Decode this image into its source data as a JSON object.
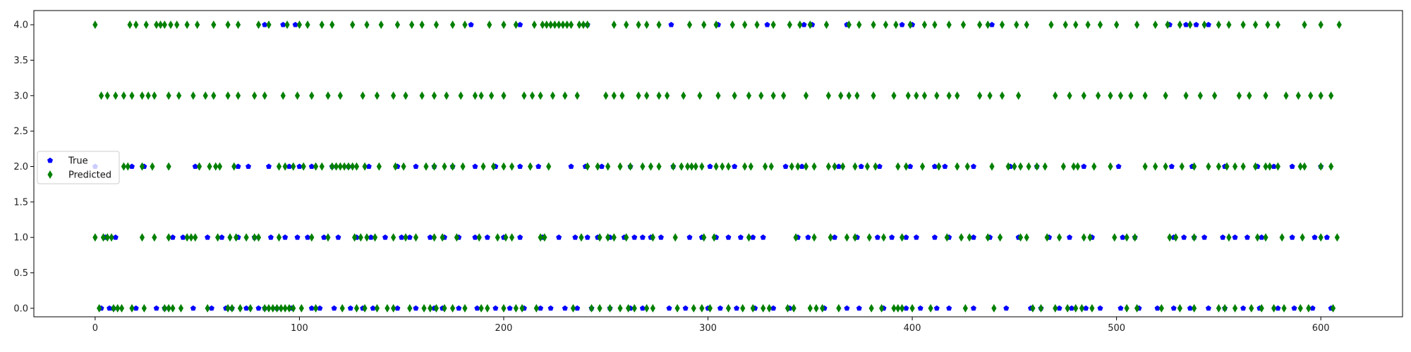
{
  "chart_data": {
    "type": "scatter",
    "title": "",
    "xlabel": "",
    "ylabel": "",
    "xlim": [
      -30,
      640
    ],
    "ylim": [
      -0.12,
      4.2
    ],
    "x_ticks": [
      0,
      100,
      200,
      300,
      400,
      500,
      600
    ],
    "y_ticks": [
      0.0,
      0.5,
      1.0,
      1.5,
      2.0,
      2.5,
      3.0,
      3.5,
      4.0
    ],
    "x_tick_labels": [
      "0",
      "100",
      "200",
      "300",
      "400",
      "500",
      "600"
    ],
    "y_tick_labels": [
      "0.0",
      "0.5",
      "1.0",
      "1.5",
      "2.0",
      "2.5",
      "3.0",
      "3.5",
      "4.0"
    ],
    "grid": false,
    "legend": {
      "position": "center-left",
      "entries": [
        "True",
        "Predicted"
      ]
    },
    "series": [
      {
        "name": "True",
        "marker": "pentagon",
        "color": "#0000ff",
        "points": {
          "0": [
            3,
            7,
            9,
            20,
            30,
            34,
            48,
            57,
            64,
            67,
            74,
            80,
            83,
            89,
            96,
            106,
            110,
            117,
            125,
            131,
            136,
            148,
            157,
            166,
            170,
            178,
            187,
            196,
            203,
            210,
            218,
            223,
            230,
            236,
            243,
            252,
            262,
            268,
            281,
            289,
            300,
            306,
            314,
            323,
            332,
            340,
            357,
            368,
            374,
            386,
            397,
            404,
            412,
            418,
            430,
            446,
            458,
            463,
            472,
            478,
            485,
            492,
            502,
            511,
            520,
            528,
            536,
            545,
            553,
            562,
            570,
            579,
            587,
            596,
            605
          ],
          "1": [
            5,
            10,
            38,
            43,
            55,
            62,
            70,
            78,
            86,
            93,
            99,
            104,
            112,
            119,
            128,
            135,
            142,
            150,
            154,
            164,
            171,
            178,
            186,
            192,
            200,
            208,
            219,
            227,
            235,
            241,
            246,
            252,
            259,
            264,
            268,
            272,
            277,
            291,
            297,
            304,
            310,
            316,
            322,
            327,
            344,
            349,
            362,
            373,
            383,
            390,
            397,
            402,
            411,
            418,
            430,
            438,
            452,
            467,
            477,
            488,
            503,
            509,
            528,
            533,
            538,
            543,
            552,
            558,
            564,
            571,
            586,
            597,
            603
          ],
          "2": [
            0,
            18,
            24,
            49,
            70,
            75,
            85,
            95,
            100,
            106,
            116,
            124,
            134,
            148,
            157,
            166,
            175,
            186,
            196,
            208,
            217,
            233,
            240,
            248,
            262,
            283,
            301,
            313,
            338,
            346,
            364,
            375,
            384,
            399,
            411,
            416,
            430,
            448,
            461,
            484,
            501,
            527,
            537,
            553,
            569,
            577,
            586,
            600
          ],
          "3": [],
          "4": [
            83,
            92,
            98,
            184,
            208,
            241,
            282,
            305,
            329,
            347,
            351,
            368,
            395,
            400,
            439,
            526,
            534,
            539,
            545
          ]
        }
      },
      {
        "name": "Predicted",
        "marker": "thin_diamond",
        "color": "#008000",
        "points": {
          "0": [
            2,
            9,
            11,
            13,
            18,
            24,
            34,
            36,
            38,
            42,
            55,
            65,
            67,
            71,
            76,
            83,
            85,
            87,
            89,
            91,
            93,
            95,
            97,
            101,
            108,
            121,
            128,
            132,
            138,
            143,
            146,
            154,
            161,
            164,
            167,
            171,
            175,
            181,
            189,
            192,
            200,
            206,
            209,
            216,
            234,
            243,
            247,
            252,
            257,
            261,
            264,
            270,
            273,
            285,
            293,
            297,
            301,
            310,
            317,
            322,
            327,
            330,
            339,
            342,
            350,
            353,
            356,
            364,
            380,
            385,
            391,
            393,
            395,
            400,
            409,
            426,
            440,
            459,
            463,
            470,
            476,
            480,
            483,
            488,
            505,
            510,
            522,
            531,
            538,
            550,
            553,
            558,
            566,
            571,
            577,
            582,
            590,
            594,
            606
          ],
          "1": [
            0,
            4,
            6,
            8,
            23,
            29,
            36,
            45,
            47,
            49,
            60,
            66,
            69,
            74,
            78,
            80,
            90,
            106,
            114,
            127,
            130,
            133,
            137,
            146,
            152,
            157,
            166,
            170,
            177,
            188,
            197,
            201,
            204,
            218,
            220,
            238,
            247,
            251,
            254,
            260,
            273,
            284,
            298,
            303,
            320,
            343,
            352,
            360,
            368,
            372,
            379,
            386,
            395,
            417,
            424,
            428,
            437,
            443,
            453,
            456,
            466,
            472,
            484,
            487,
            499,
            505,
            509,
            526,
            529,
            538,
            555,
            569,
            573,
            581,
            591,
            600,
            608
          ],
          "2": [
            14,
            16,
            23,
            28,
            36,
            51,
            56,
            59,
            61,
            68,
            90,
            93,
            97,
            102,
            108,
            111,
            116,
            118,
            120,
            122,
            124,
            126,
            128,
            132,
            139,
            147,
            151,
            162,
            166,
            171,
            175,
            180,
            190,
            195,
            200,
            204,
            213,
            222,
            241,
            246,
            251,
            257,
            262,
            268,
            272,
            276,
            283,
            287,
            290,
            292,
            294,
            297,
            304,
            307,
            310,
            318,
            321,
            328,
            331,
            341,
            344,
            348,
            352,
            359,
            362,
            366,
            372,
            378,
            382,
            393,
            397,
            405,
            413,
            422,
            427,
            439,
            447,
            450,
            453,
            457,
            461,
            465,
            474,
            479,
            481,
            489,
            497,
            514,
            519,
            524,
            532,
            538,
            545,
            550,
            554,
            558,
            562,
            568,
            573,
            575,
            579,
            590,
            592,
            600,
            605
          ],
          "3": [
            3,
            6,
            10,
            14,
            18,
            23,
            26,
            29,
            36,
            41,
            48,
            54,
            58,
            65,
            70,
            78,
            83,
            92,
            99,
            106,
            114,
            120,
            131,
            138,
            146,
            152,
            160,
            166,
            172,
            179,
            186,
            189,
            194,
            200,
            210,
            214,
            218,
            224,
            230,
            236,
            250,
            254,
            258,
            266,
            270,
            276,
            280,
            288,
            296,
            305,
            313,
            320,
            326,
            332,
            337,
            348,
            359,
            365,
            369,
            373,
            381,
            391,
            398,
            402,
            406,
            412,
            418,
            422,
            433,
            438,
            444,
            452,
            470,
            477,
            484,
            491,
            497,
            502,
            507,
            514,
            524,
            534,
            541,
            548,
            560,
            565,
            573,
            583,
            589,
            595,
            600,
            605
          ],
          "4": [
            0,
            17,
            20,
            25,
            30,
            32,
            34,
            37,
            40,
            45,
            50,
            58,
            65,
            70,
            80,
            85,
            94,
            100,
            104,
            111,
            116,
            126,
            133,
            140,
            148,
            155,
            160,
            167,
            175,
            181,
            193,
            200,
            206,
            215,
            219,
            221,
            223,
            225,
            227,
            229,
            231,
            233,
            237,
            239,
            241,
            254,
            260,
            266,
            270,
            276,
            291,
            298,
            304,
            312,
            318,
            324,
            332,
            340,
            345,
            350,
            358,
            369,
            374,
            381,
            387,
            392,
            399,
            406,
            411,
            418,
            425,
            433,
            437,
            444,
            451,
            456,
            468,
            475,
            480,
            486,
            492,
            500,
            510,
            519,
            525,
            531,
            536,
            543,
            550,
            555,
            562,
            568,
            574,
            579,
            592,
            600,
            609
          ]
        }
      }
    ]
  }
}
